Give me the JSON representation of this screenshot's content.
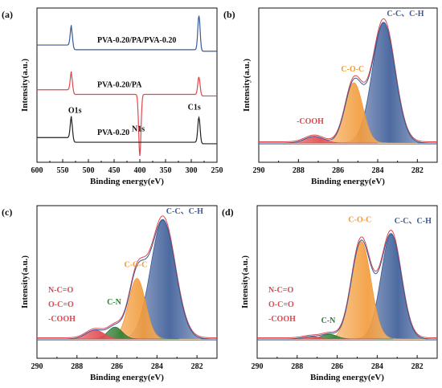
{
  "chart_data": [
    {
      "panel_label": "(a)",
      "type": "line",
      "xlabel": "Binding energy(eV)",
      "ylabel": "Intensity(a.u.)",
      "xlim": [
        600,
        250
      ],
      "xticks": [
        600,
        550,
        500,
        450,
        400,
        350,
        300,
        250
      ],
      "series": [
        {
          "name": "PVA-0.20/PA/PVA-0.20",
          "color": "#3a5a96",
          "peaks": [
            {
              "x": 533,
              "h": 0.85
            },
            {
              "x": 285,
              "h": 0.95
            }
          ],
          "base": 0.72
        },
        {
          "name": "PVA-0.20/PA",
          "color": "#e0474c",
          "peaks": [
            {
              "x": 533,
              "h": 0.55
            },
            {
              "x": 285,
              "h": 0.55
            },
            {
              "x": 400,
              "h": 0.03
            }
          ],
          "base": 0.43
        },
        {
          "name": "PVA-0.20",
          "color": "#222222",
          "peaks": [
            {
              "x": 533,
              "h": 0.26
            },
            {
              "x": 285,
              "h": 0.29
            }
          ],
          "base": 0.12
        }
      ],
      "annotations": [
        {
          "text": "O1s",
          "x": 533
        },
        {
          "text": "N1s",
          "x": 400
        },
        {
          "text": "C1s",
          "x": 285
        }
      ]
    },
    {
      "panel_label": "(b)",
      "type": "area",
      "xlabel": "Binding energy(eV)",
      "ylabel": "Intensity(a.u.)",
      "xlim": [
        290,
        281
      ],
      "xticks": [
        290,
        288,
        286,
        284,
        282
      ],
      "components": [
        {
          "label": "C-C、C-H",
          "center": 283.7,
          "height": 1.0,
          "fwhm": 1.35,
          "color": "#3a5a96"
        },
        {
          "label": "C-O-C",
          "center": 285.2,
          "height": 0.5,
          "fwhm": 1.05,
          "color": "#f29a38"
        },
        {
          "label": "-COOH",
          "center": 287.2,
          "height": 0.055,
          "fwhm": 1.1,
          "color": "#e0474c"
        }
      ]
    },
    {
      "panel_label": "(c)",
      "type": "area",
      "xlabel": "Binding energy(eV)",
      "ylabel": "Intensity(a.u.)",
      "xlim": [
        290,
        281
      ],
      "xticks": [
        290,
        288,
        286,
        284,
        282
      ],
      "components": [
        {
          "label": "C-C、C-H",
          "center": 283.7,
          "height": 1.0,
          "fwhm": 1.45,
          "color": "#3a5a96"
        },
        {
          "label": "C-O-C",
          "center": 285.0,
          "height": 0.51,
          "fwhm": 1.0,
          "color": "#f29a38"
        },
        {
          "label": "C-N",
          "center": 286.1,
          "height": 0.1,
          "fwhm": 0.85,
          "color": "#2e7d32"
        },
        {
          "label": "N-C=O\nO-C=O\n-COOH",
          "center": 287.1,
          "height": 0.075,
          "fwhm": 1.05,
          "color": "#e0474c"
        }
      ]
    },
    {
      "panel_label": "(d)",
      "type": "area",
      "xlabel": "Binding energy(eV)",
      "ylabel": "Intensity(a.u.)",
      "xlim": [
        290,
        281
      ],
      "xticks": [
        290,
        288,
        286,
        284,
        282
      ],
      "components": [
        {
          "label": "C-C、C-H",
          "center": 283.3,
          "height": 0.88,
          "fwhm": 1.2,
          "color": "#3a5a96"
        },
        {
          "label": "C-O-C",
          "center": 284.8,
          "height": 0.82,
          "fwhm": 1.15,
          "color": "#f29a38"
        },
        {
          "label": "C-N",
          "center": 286.4,
          "height": 0.04,
          "fwhm": 0.9,
          "color": "#2e7d32"
        },
        {
          "label": "N-C=O\nO-C=O\n-COOH",
          "center": 287.3,
          "height": 0.02,
          "fwhm": 1.0,
          "color": "#e0474c"
        }
      ]
    }
  ]
}
